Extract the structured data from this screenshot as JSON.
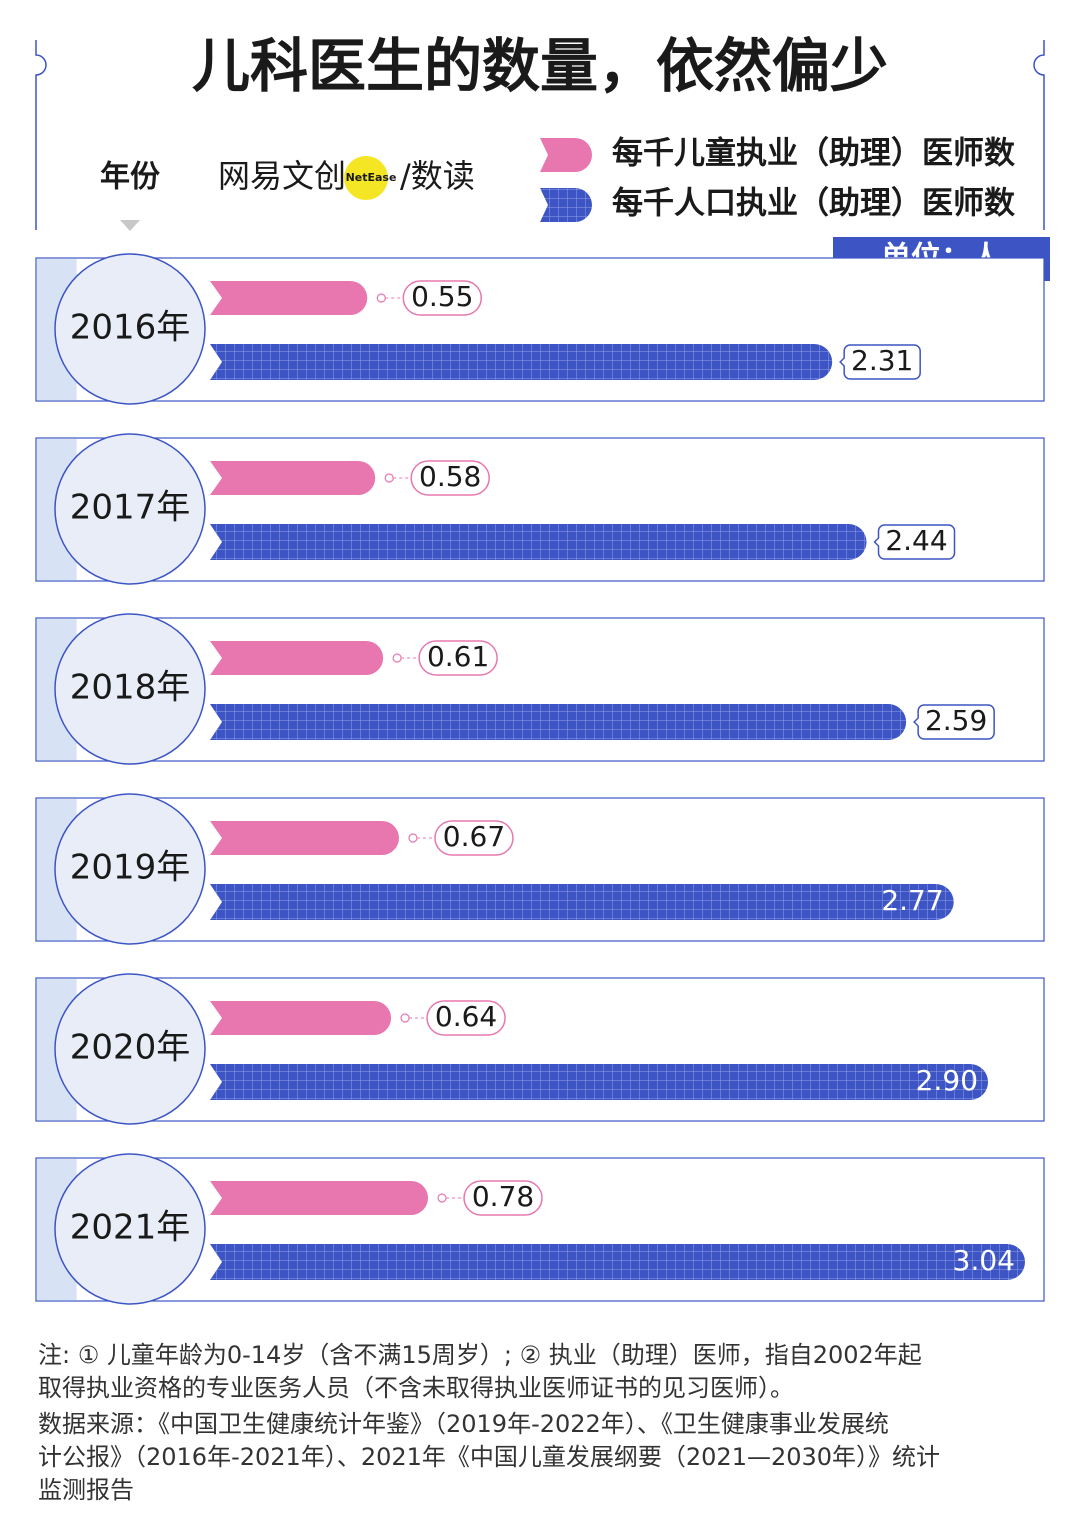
{
  "chart_data": {
    "type": "bar",
    "orientation": "horizontal",
    "title": "儿科医生的数量，依然偏少",
    "y_label": "年份",
    "brand": [
      "网易文创",
      "NetEase",
      "/数读"
    ],
    "unit": "单位：人",
    "categories": [
      "2016年",
      "2017年",
      "2018年",
      "2019年",
      "2020年",
      "2021年"
    ],
    "series": [
      {
        "name": "每千儿童执业（助理）医师数",
        "color": "#e877b0",
        "values": [
          0.55,
          0.58,
          0.61,
          0.67,
          0.64,
          0.78
        ]
      },
      {
        "name": "每千人口执业（助理）医师数",
        "color": "#3d55c4",
        "values": [
          2.31,
          2.44,
          2.59,
          2.77,
          2.9,
          3.04
        ],
        "value_labels": [
          "2.31",
          "2.44",
          "2.59",
          "2.77",
          "2.90",
          "3.04"
        ]
      }
    ],
    "notes": [
      "注: ① 儿童年龄为0-14岁（含不满15周岁）; ② 执业（助理）医师，指自2002年起",
      "取得执业资格的专业医务人员（不含未取得执业医师证书的见习医师）。",
      "数据来源：《中国卫生健康统计年鉴》（2019年-2022年）、《卫生健康事业发展统",
      "计公报》（2016年-2021年）、2021年《中国儿童发展纲要（2021—2030年）》统计",
      "监测报告"
    ]
  }
}
